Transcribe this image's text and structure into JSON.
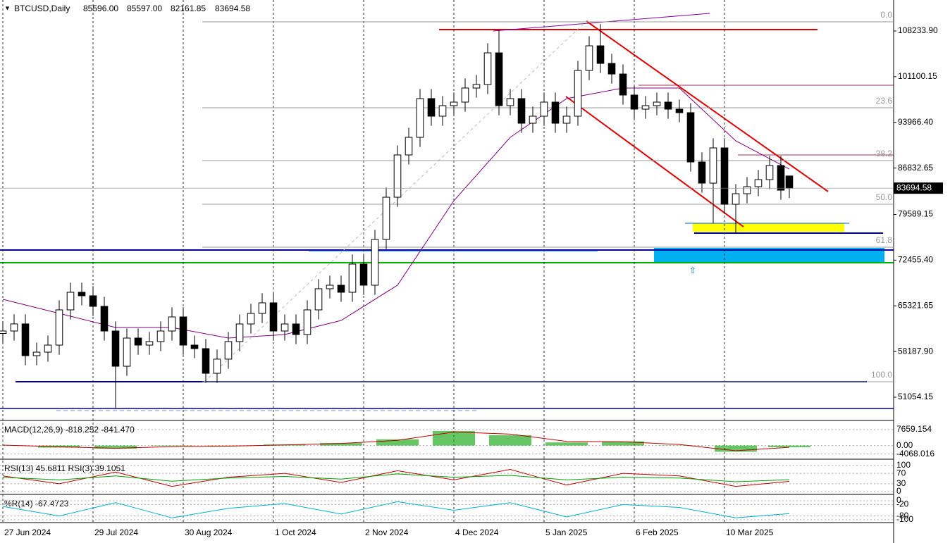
{
  "chart_data": {
    "type": "candlestick",
    "title": "BTCUSD,Daily",
    "ohlc_labels": [
      "85596.00",
      "85597.00",
      "82161.85",
      "83694.58"
    ],
    "x": [
      0,
      4,
      8,
      12,
      16,
      20,
      24,
      28,
      32,
      36,
      40,
      44,
      48,
      52,
      56,
      60,
      64,
      68,
      72,
      76,
      80,
      84,
      88,
      92,
      96,
      100,
      104,
      108,
      112,
      116,
      120,
      124,
      128,
      132,
      136,
      140,
      144,
      148,
      152,
      156,
      160,
      164,
      168,
      172,
      176,
      180,
      184,
      188,
      192,
      196,
      200,
      204,
      208,
      212,
      216,
      220,
      224,
      228,
      232,
      236,
      240,
      244,
      248,
      252,
      256,
      260,
      264,
      268,
      272,
      276,
      279
    ],
    "open": [
      61000,
      61390,
      62500,
      57540,
      58090,
      59190,
      64690,
      67440,
      66890,
      65240,
      61390,
      55890,
      60290,
      59190,
      59740,
      61390,
      63590,
      59190,
      58640,
      54790,
      57000,
      59740,
      62490,
      64140,
      65790,
      61390,
      62490,
      60840,
      64690,
      67990,
      68540,
      67440,
      71840,
      68540,
      75690,
      82280,
      88880,
      91630,
      97680,
      94930,
      96580,
      97130,
      99330,
      99880,
      104820,
      96580,
      97680,
      93830,
      94930,
      97130,
      93830,
      94930,
      102070,
      105920,
      103170,
      101520,
      98230,
      96030,
      96580,
      97130,
      96030,
      95480,
      87780,
      84480,
      89980,
      81180,
      82830,
      83930,
      85030,
      87230,
      85596
    ],
    "high": [
      62890,
      64000,
      64000,
      59590,
      60690,
      66190,
      68940,
      68940,
      68390,
      66740,
      62890,
      61790,
      61790,
      61240,
      62890,
      65090,
      65090,
      60690,
      60140,
      58500,
      61240,
      63990,
      65640,
      67290,
      67290,
      63990,
      63990,
      66190,
      69490,
      70040,
      70040,
      73340,
      73340,
      77190,
      83780,
      90380,
      93130,
      99180,
      99180,
      98080,
      98630,
      100830,
      101380,
      106320,
      108300,
      99180,
      99180,
      96430,
      98630,
      98630,
      96430,
      103570,
      107420,
      109300,
      104670,
      103020,
      99730,
      98080,
      98630,
      98630,
      97530,
      96980,
      89280,
      91480,
      91480,
      84330,
      85430,
      86530,
      88730,
      88730,
      85597
    ],
    "low": [
      59500,
      59890,
      56040,
      56040,
      56590,
      57690,
      63190,
      65390,
      63740,
      59890,
      49300,
      54390,
      57690,
      57690,
      58240,
      59890,
      57690,
      57140,
      53290,
      53290,
      55500,
      58240,
      60990,
      62640,
      59890,
      59890,
      59340,
      59340,
      63190,
      66490,
      65940,
      65940,
      67040,
      67040,
      74190,
      80780,
      87380,
      90130,
      93430,
      93430,
      95080,
      95630,
      97830,
      98380,
      95080,
      95080,
      92330,
      92330,
      93430,
      92330,
      92330,
      93430,
      100570,
      101670,
      100020,
      96730,
      94530,
      94530,
      95080,
      94530,
      93980,
      86280,
      82980,
      78200,
      79680,
      76600,
      81330,
      82430,
      83530,
      81880,
      82161.85
    ],
    "close": [
      61390,
      62500,
      57540,
      58090,
      59190,
      64690,
      67440,
      66890,
      65240,
      61390,
      55890,
      60290,
      59190,
      59740,
      61390,
      63590,
      59190,
      58640,
      54790,
      57000,
      59740,
      62490,
      64140,
      65790,
      61390,
      62490,
      60840,
      64690,
      67990,
      68540,
      67440,
      71840,
      68540,
      75690,
      82280,
      88880,
      91630,
      97680,
      94930,
      96580,
      97130,
      99330,
      99880,
      104820,
      96580,
      97680,
      93830,
      94930,
      97130,
      93830,
      94930,
      102070,
      105920,
      103170,
      101520,
      98230,
      96030,
      96580,
      97130,
      96030,
      95480,
      87780,
      84480,
      89980,
      81180,
      82830,
      83930,
      85030,
      87230,
      83380,
      83694.58
    ],
    "xlim": [
      -1,
      316
    ],
    "xticks": [
      {
        "value": 0,
        "label": "27 Jun 2024"
      },
      {
        "value": 32,
        "label": "29 Jul 2024"
      },
      {
        "value": 64,
        "label": "30 Aug 2024"
      },
      {
        "value": 96,
        "label": "1 Oct 2024"
      },
      {
        "value": 128,
        "label": "2 Nov 2024"
      },
      {
        "value": 160,
        "label": "4 Dec 2024"
      },
      {
        "value": 192,
        "label": "5 Jan 2025"
      },
      {
        "value": 224,
        "label": "6 Feb 2025"
      },
      {
        "value": 256,
        "label": "10 Mar 2025"
      }
    ],
    "ylim": [
      47425,
      113072
    ],
    "yticks": [
      {
        "value": 108233.9,
        "label": "108233.90"
      },
      101100.15,
      {
        "value": 93966.4,
        "label": "93966.40"
      },
      86832.65,
      79589.15,
      {
        "value": 72455.4,
        "label": "72455.40"
      },
      65321.65,
      {
        "value": 58187.9,
        "label": "58187.90"
      },
      51054.15
    ],
    "ma": {
      "color": "#800080",
      "x": [
        0,
        20,
        40,
        60,
        80,
        100,
        120,
        140,
        160,
        180,
        200,
        220,
        240,
        260,
        279
      ],
      "values": [
        66340,
        64140,
        61940,
        61940,
        60290,
        60840,
        63040,
        68540,
        81730,
        91630,
        97680,
        99330,
        99330,
        91080,
        86680
      ]
    },
    "fib": {
      "levels": [
        109663,
        96248,
        88001,
        81184,
        74476,
        53474
      ],
      "labels": [
        "0.0",
        "23.6",
        "38.2",
        "50.0",
        "61.8",
        "100.0"
      ]
    },
    "indicators": [
      {
        "title": "MACD(12,26,9) -818.252 -841.470",
        "ylim": [
          -5200,
          9000
        ],
        "yticks": [
          7659.154,
          {
            "value": 0,
            "label": "0.00"
          },
          -4068.016
        ],
        "series": [
          {
            "name": "MACD",
            "style": "hist",
            "color": "#00a000",
            "values": [
              0,
              -1000,
              -1500,
              -200,
              -300,
              500,
              1200,
              3000,
              7000,
              5000,
              1500,
              2000,
              100,
              -3000,
              -818.252
            ]
          },
          {
            "name": "Signal",
            "style": "line",
            "color": "#c00000",
            "values": [
              200,
              -600,
              -1300,
              -500,
              -300,
              300,
              1000,
              2500,
              6500,
              5500,
              2000,
              1800,
              500,
              -2500,
              -841.47
            ]
          }
        ]
      },
      {
        "title": "RSI(13) 45.6811  RSI(3) 39.1051",
        "ylim": [
          0,
          100
        ],
        "yticks": [
          100,
          70,
          30,
          0
        ],
        "series": [
          {
            "name": "RSI(3)",
            "style": "line",
            "color": "#c00000",
            "values": [
              60,
              30,
              75,
              20,
              55,
              70,
              35,
              80,
              45,
              85,
              25,
              70,
              60,
              20,
              39.1051
            ]
          },
          {
            "name": "RSI(13)",
            "style": "line",
            "color": "#00a000",
            "values": [
              55,
              45,
              60,
              40,
              52,
              58,
              48,
              68,
              55,
              62,
              45,
              55,
              52,
              38,
              45.6811
            ]
          }
        ]
      },
      {
        "title": "%R(14) -67.4723",
        "ylim": [
          -100,
          0
        ],
        "yticks": [
          0,
          -20,
          -80,
          -100
        ],
        "series": [
          {
            "name": "%R(14)",
            "style": "line",
            "color": "#00b0d0",
            "values": [
              -30,
              -80,
              -10,
              -90,
              -40,
              -15,
              -70,
              -5,
              -50,
              -10,
              -85,
              -20,
              -35,
              -90,
              -67.4723
            ]
          }
        ]
      }
    ],
    "indicator_x": [
      0,
      20,
      40,
      60,
      80,
      100,
      120,
      140,
      160,
      180,
      200,
      220,
      240,
      260,
      279
    ]
  }
}
